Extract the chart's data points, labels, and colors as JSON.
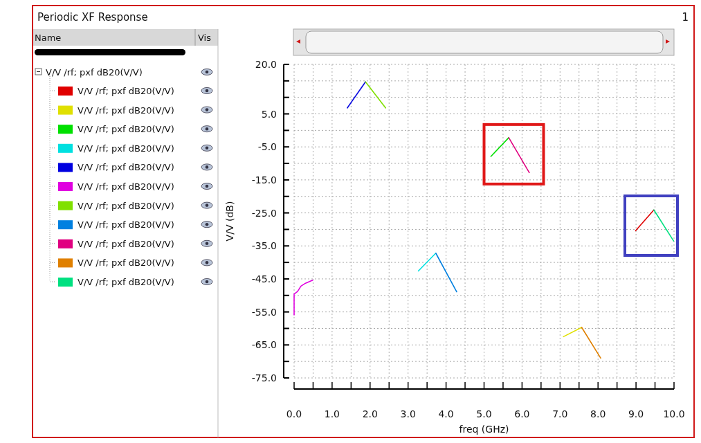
{
  "chart_data": {
    "type": "line",
    "title": "Periodic XF Response",
    "xlabel": "freq (GHz)",
    "ylabel": "V/V (dB)",
    "annotations": [
      "1",
      "Name",
      "Vis",
      "V/V /rf; pxf dB20(V/V)"
    ],
    "xlim": [
      0,
      10
    ],
    "ylim": [
      -75,
      20
    ],
    "xticks": [
      {
        "value": 0,
        "label": "0.0"
      },
      {
        "value": 0.5,
        "label": null
      },
      {
        "value": 1,
        "label": "1.0"
      },
      {
        "value": 1.5,
        "label": null
      },
      {
        "value": 2,
        "label": "2.0"
      },
      {
        "value": 2.5,
        "label": null
      },
      {
        "value": 3,
        "label": "3.0"
      },
      {
        "value": 3.5,
        "label": null
      },
      {
        "value": 4,
        "label": "4.0"
      },
      {
        "value": 4.5,
        "label": null
      },
      {
        "value": 5,
        "label": "5.0"
      },
      {
        "value": 5.5,
        "label": null
      },
      {
        "value": 6,
        "label": "6.0"
      },
      {
        "value": 6.5,
        "label": null
      },
      {
        "value": 7,
        "label": "7.0"
      },
      {
        "value": 7.5,
        "label": null
      },
      {
        "value": 8,
        "label": "8.0"
      },
      {
        "value": 8.5,
        "label": null
      },
      {
        "value": 9,
        "label": "9.0"
      },
      {
        "value": 9.5,
        "label": null
      },
      {
        "value": 10,
        "label": "10.0"
      }
    ],
    "yticks": [
      {
        "value": 20,
        "label": "20.0"
      },
      {
        "value": 15,
        "label": null
      },
      {
        "value": 10,
        "label": null
      },
      {
        "value": 5,
        "label": "5.0"
      },
      {
        "value": 0,
        "label": null
      },
      {
        "value": -5,
        "label": "-5.0"
      },
      {
        "value": -10,
        "label": null
      },
      {
        "value": -15,
        "label": "-15.0"
      },
      {
        "value": -20,
        "label": null
      },
      {
        "value": -25,
        "label": "-25.0"
      },
      {
        "value": -30,
        "label": null
      },
      {
        "value": -35,
        "label": "-35.0"
      },
      {
        "value": -40,
        "label": null
      },
      {
        "value": -45,
        "label": "-45.0"
      },
      {
        "value": -50,
        "label": null
      },
      {
        "value": -55,
        "label": "-55.0"
      },
      {
        "value": -60,
        "label": null
      },
      {
        "value": -65,
        "label": "-65.0"
      },
      {
        "value": -70,
        "label": null
      },
      {
        "value": -75,
        "label": "-75.0"
      }
    ],
    "grid": true,
    "legend": "left",
    "line_style": "solid",
    "series": [
      {
        "name": "V/V /rf; pxf dB20(V/V)",
        "color": "#e00000",
        "x": [
          8.99,
          9.47
        ],
        "values": [
          -30.4,
          -24.1
        ]
      },
      {
        "name": "V/V /rf; pxf dB20(V/V)",
        "color": "#e0e000",
        "x": [
          7.09,
          7.57
        ],
        "values": [
          -62.5,
          -59.7
        ]
      },
      {
        "name": "V/V /rf; pxf dB20(V/V)",
        "color": "#00e000",
        "x": [
          5.18,
          5.65
        ],
        "values": [
          -7.9,
          -2.2
        ]
      },
      {
        "name": "V/V /rf; pxf dB20(V/V)",
        "color": "#00e0e0",
        "x": [
          3.27,
          3.73
        ],
        "values": [
          -42.6,
          -37.2
        ]
      },
      {
        "name": "V/V /rf; pxf dB20(V/V)",
        "color": "#0000e0",
        "x": [
          1.4,
          1.88
        ],
        "values": [
          6.8,
          14.7
        ]
      },
      {
        "name": "V/V /rf; pxf dB20(V/V)",
        "color": "#e000e0",
        "x": [
          0,
          0,
          0.09,
          0.18,
          0.3,
          0.49
        ],
        "values": [
          -55.9,
          -49.6,
          -48.8,
          -47.2,
          -46.3,
          -45.4
        ]
      },
      {
        "name": "V/V /rf; pxf dB20(V/V)",
        "color": "#80e000",
        "x": [
          1.88,
          2.41
        ],
        "values": [
          14.7,
          6.8
        ]
      },
      {
        "name": "V/V /rf; pxf dB20(V/V)",
        "color": "#0080e0",
        "x": [
          3.73,
          4.28
        ],
        "values": [
          -37.2,
          -48.9
        ]
      },
      {
        "name": "V/V /rf; pxf dB20(V/V)",
        "color": "#e00080",
        "x": [
          5.65,
          6.19
        ],
        "values": [
          -2.2,
          -12.8
        ]
      },
      {
        "name": "V/V /rf; pxf dB20(V/V)",
        "color": "#e08000",
        "x": [
          7.57,
          8.07
        ],
        "values": [
          -59.7,
          -69.0
        ]
      },
      {
        "name": "V/V /rf; pxf dB20(V/V)",
        "color": "#00e080",
        "x": [
          9.47,
          9.99
        ],
        "values": [
          -24.1,
          -33.5
        ]
      }
    ]
  }
}
